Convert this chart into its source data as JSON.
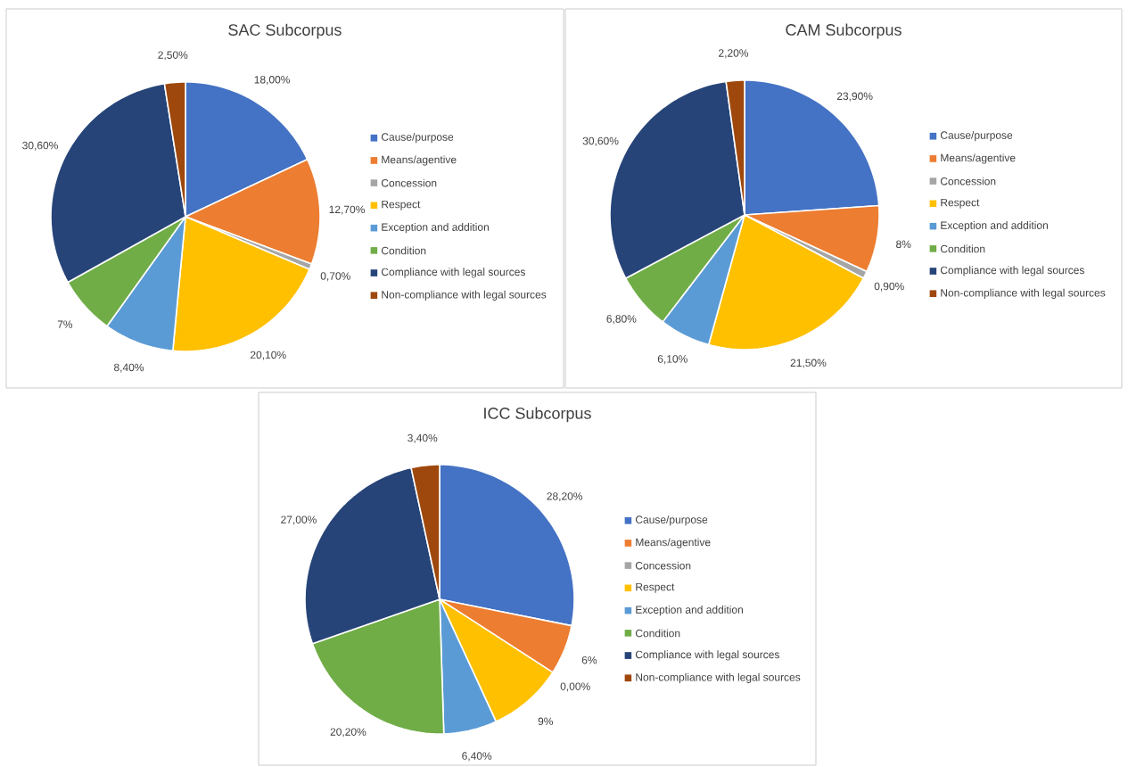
{
  "chart_data": [
    {
      "type": "pie",
      "title": "SAC Subcorpus",
      "legend": "right",
      "categories": [
        "Cause/purpose",
        "Means/agentive",
        "Concession",
        "Respect",
        "Exception and addition",
        "Condition",
        "Compliance with legal sources",
        "Non-compliance with legal sources"
      ],
      "values": [
        18.0,
        12.7,
        0.7,
        20.1,
        8.4,
        7,
        30.6,
        2.5
      ],
      "value_labels": [
        "18,00%",
        "12,70%",
        "0,70%",
        "20,10%",
        "8,40%",
        "7%",
        "30,60%",
        "2,50%"
      ],
      "colors": [
        "#4472c4",
        "#ed7d31",
        "#a5a5a5",
        "#ffc000",
        "#5b9bd5",
        "#70ad47",
        "#264478",
        "#9e480e"
      ]
    },
    {
      "type": "pie",
      "title": "CAM Subcorpus",
      "legend": "right",
      "categories": [
        "Cause/purpose",
        "Means/agentive",
        "Concession",
        "Respect",
        "Exception and addition",
        "Condition",
        "Compliance with legal sources",
        "Non-compliance with legal sources"
      ],
      "values": [
        23.9,
        8,
        0.9,
        21.5,
        6.1,
        6.8,
        30.6,
        2.2
      ],
      "value_labels": [
        "23,90%",
        "8%",
        "0,90%",
        "21,50%",
        "6,10%",
        "6,80%",
        "30,60%",
        "2,20%"
      ],
      "colors": [
        "#4472c4",
        "#ed7d31",
        "#a5a5a5",
        "#ffc000",
        "#5b9bd5",
        "#70ad47",
        "#264478",
        "#9e480e"
      ]
    },
    {
      "type": "pie",
      "title": "ICC Subcorpus",
      "legend": "right",
      "categories": [
        "Cause/purpose",
        "Means/agentive",
        "Concession",
        "Respect",
        "Exception and addition",
        "Condition",
        "Compliance with legal sources",
        "Non-compliance with legal sources"
      ],
      "values": [
        28.2,
        6,
        0.0,
        9,
        6.4,
        20.2,
        27.0,
        3.4
      ],
      "value_labels": [
        "28,20%",
        "6%",
        "0,00%",
        "9%",
        "6,40%",
        "20,20%",
        "27,00%",
        "3,40%"
      ],
      "colors": [
        "#4472c4",
        "#ed7d31",
        "#a5a5a5",
        "#ffc000",
        "#5b9bd5",
        "#70ad47",
        "#264478",
        "#9e480e"
      ]
    }
  ]
}
